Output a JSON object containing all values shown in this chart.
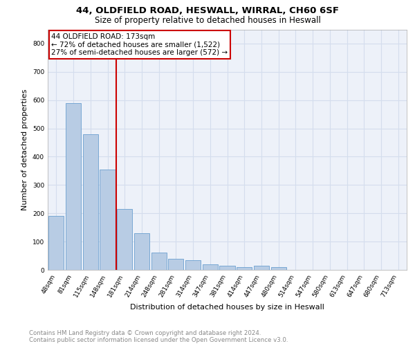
{
  "title_line1": "44, OLDFIELD ROAD, HESWALL, WIRRAL, CH60 6SF",
  "title_line2": "Size of property relative to detached houses in Heswall",
  "xlabel": "Distribution of detached houses by size in Heswall",
  "ylabel": "Number of detached properties",
  "categories": [
    "48sqm",
    "81sqm",
    "115sqm",
    "148sqm",
    "181sqm",
    "214sqm",
    "248sqm",
    "281sqm",
    "314sqm",
    "347sqm",
    "381sqm",
    "414sqm",
    "447sqm",
    "480sqm",
    "514sqm",
    "547sqm",
    "580sqm",
    "613sqm",
    "647sqm",
    "680sqm",
    "713sqm"
  ],
  "values": [
    190,
    590,
    480,
    355,
    215,
    130,
    62,
    40,
    35,
    20,
    15,
    10,
    15,
    10,
    0,
    0,
    0,
    0,
    0,
    0,
    0
  ],
  "bar_color": "#b8cce4",
  "bar_edgecolor": "#6a9fd0",
  "bar_linewidth": 0.6,
  "vline_x_index": 4,
  "vline_color": "#cc0000",
  "vline_linewidth": 1.5,
  "annotation_title": "44 OLDFIELD ROAD: 173sqm",
  "annotation_line1": "← 72% of detached houses are smaller (1,522)",
  "annotation_line2": "27% of semi-detached houses are larger (572) →",
  "annotation_box_color": "#cc0000",
  "ylim": [
    0,
    850
  ],
  "yticks": [
    0,
    100,
    200,
    300,
    400,
    500,
    600,
    700,
    800
  ],
  "grid_color": "#d4dded",
  "background_color": "#edf1f9",
  "footer_line1": "Contains HM Land Registry data © Crown copyright and database right 2024.",
  "footer_line2": "Contains public sector information licensed under the Open Government Licence v3.0.",
  "title_fontsize": 9.5,
  "subtitle_fontsize": 8.5,
  "axis_label_fontsize": 8,
  "tick_fontsize": 6.5,
  "annotation_fontsize": 7.5,
  "footer_fontsize": 6.2
}
